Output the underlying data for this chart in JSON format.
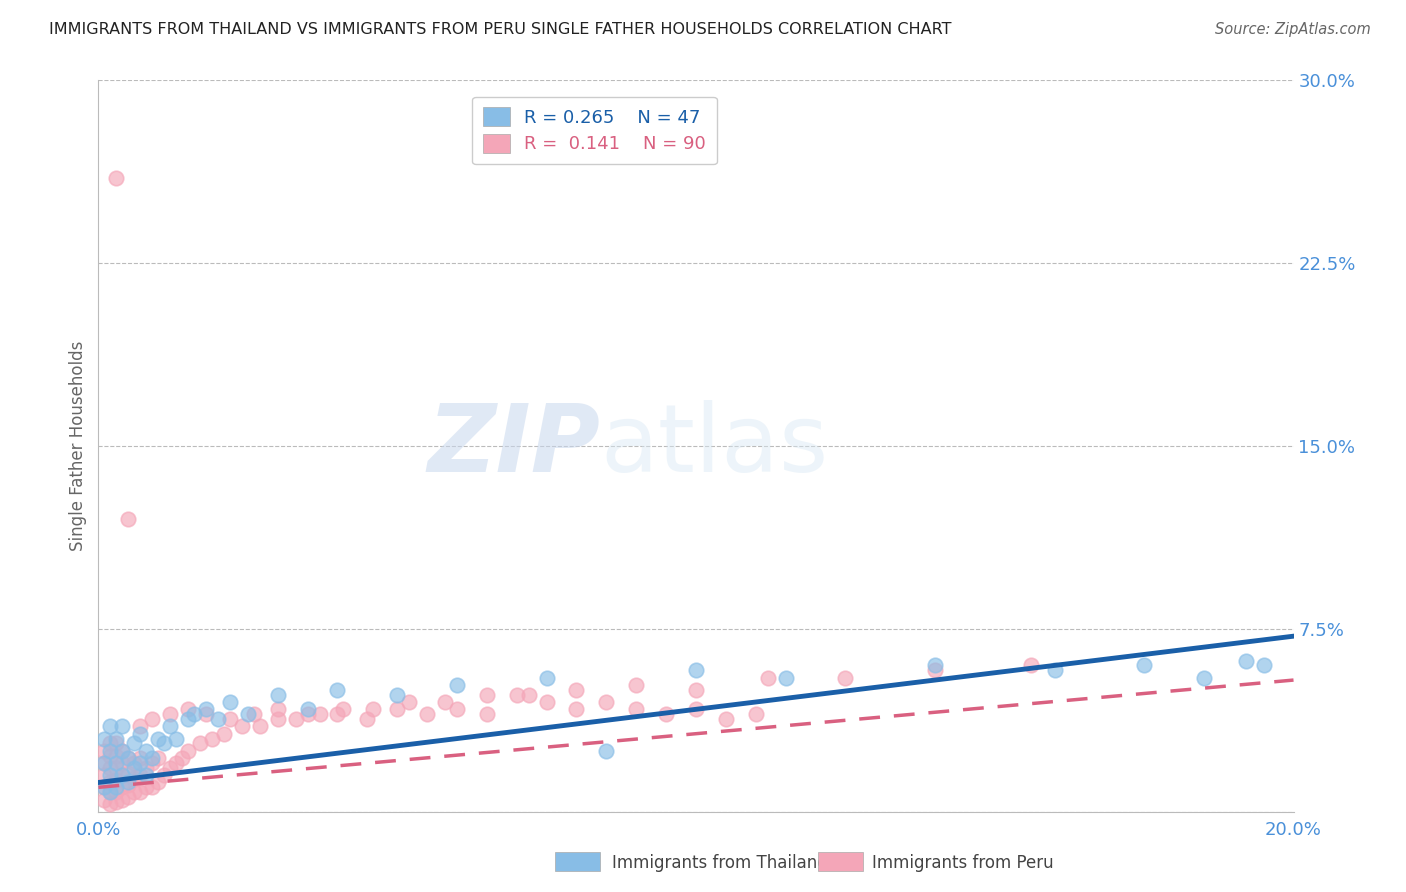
{
  "title": "IMMIGRANTS FROM THAILAND VS IMMIGRANTS FROM PERU SINGLE FATHER HOUSEHOLDS CORRELATION CHART",
  "source": "Source: ZipAtlas.com",
  "ylabel": "Single Father Households",
  "xlim": [
    0.0,
    0.2
  ],
  "ylim": [
    0.0,
    0.3
  ],
  "xtick_labels": [
    "0.0%",
    "20.0%"
  ],
  "ytick_labels": [
    "",
    "7.5%",
    "15.0%",
    "22.5%",
    "30.0%"
  ],
  "yticks": [
    0.0,
    0.075,
    0.15,
    0.225,
    0.3
  ],
  "thailand_color": "#88bde6",
  "peru_color": "#f4a6b8",
  "thailand_line_color": "#1a5fa8",
  "peru_line_color": "#d96080",
  "legend_r_thailand": "0.265",
  "legend_n_thailand": "47",
  "legend_r_peru": "0.141",
  "legend_n_peru": "90",
  "watermark_zip": "ZIP",
  "watermark_atlas": "atlas",
  "background_color": "#ffffff",
  "grid_color": "#bbbbbb",
  "title_color": "#222222",
  "axis_label_color": "#666666",
  "ytick_label_color": "#4a90d9",
  "xtick_label_color": "#4a90d9",
  "thailand_slope": 0.3,
  "thailand_intercept": 0.012,
  "peru_slope": 0.22,
  "peru_intercept": 0.01,
  "thailand_points_x": [
    0.001,
    0.001,
    0.001,
    0.002,
    0.002,
    0.002,
    0.002,
    0.003,
    0.003,
    0.003,
    0.004,
    0.004,
    0.004,
    0.005,
    0.005,
    0.006,
    0.006,
    0.007,
    0.007,
    0.008,
    0.008,
    0.009,
    0.01,
    0.011,
    0.012,
    0.013,
    0.015,
    0.016,
    0.018,
    0.02,
    0.022,
    0.025,
    0.03,
    0.035,
    0.04,
    0.05,
    0.06,
    0.075,
    0.085,
    0.1,
    0.115,
    0.14,
    0.16,
    0.175,
    0.185,
    0.192,
    0.195
  ],
  "thailand_points_y": [
    0.01,
    0.02,
    0.03,
    0.008,
    0.015,
    0.025,
    0.035,
    0.01,
    0.02,
    0.03,
    0.015,
    0.025,
    0.035,
    0.012,
    0.022,
    0.018,
    0.028,
    0.02,
    0.032,
    0.015,
    0.025,
    0.022,
    0.03,
    0.028,
    0.035,
    0.03,
    0.038,
    0.04,
    0.042,
    0.038,
    0.045,
    0.04,
    0.048,
    0.042,
    0.05,
    0.048,
    0.052,
    0.055,
    0.025,
    0.058,
    0.055,
    0.06,
    0.058,
    0.06,
    0.055,
    0.062,
    0.06
  ],
  "peru_points_x": [
    0.001,
    0.001,
    0.001,
    0.001,
    0.001,
    0.002,
    0.002,
    0.002,
    0.002,
    0.002,
    0.002,
    0.003,
    0.003,
    0.003,
    0.003,
    0.003,
    0.003,
    0.004,
    0.004,
    0.004,
    0.004,
    0.004,
    0.005,
    0.005,
    0.005,
    0.005,
    0.006,
    0.006,
    0.006,
    0.007,
    0.007,
    0.007,
    0.008,
    0.008,
    0.009,
    0.009,
    0.01,
    0.01,
    0.011,
    0.012,
    0.013,
    0.014,
    0.015,
    0.017,
    0.019,
    0.021,
    0.024,
    0.027,
    0.03,
    0.033,
    0.037,
    0.041,
    0.046,
    0.052,
    0.058,
    0.065,
    0.072,
    0.08,
    0.09,
    0.1,
    0.112,
    0.125,
    0.14,
    0.156,
    0.003,
    0.005,
    0.007,
    0.009,
    0.012,
    0.015,
    0.018,
    0.022,
    0.026,
    0.03,
    0.035,
    0.04,
    0.045,
    0.05,
    0.055,
    0.06,
    0.065,
    0.07,
    0.075,
    0.08,
    0.085,
    0.09,
    0.095,
    0.1,
    0.105,
    0.11
  ],
  "peru_points_y": [
    0.005,
    0.01,
    0.015,
    0.02,
    0.025,
    0.003,
    0.008,
    0.012,
    0.018,
    0.023,
    0.028,
    0.004,
    0.008,
    0.013,
    0.018,
    0.023,
    0.028,
    0.005,
    0.01,
    0.015,
    0.02,
    0.025,
    0.006,
    0.011,
    0.016,
    0.022,
    0.008,
    0.014,
    0.02,
    0.008,
    0.015,
    0.022,
    0.01,
    0.018,
    0.01,
    0.02,
    0.012,
    0.022,
    0.015,
    0.018,
    0.02,
    0.022,
    0.025,
    0.028,
    0.03,
    0.032,
    0.035,
    0.035,
    0.038,
    0.038,
    0.04,
    0.042,
    0.042,
    0.045,
    0.045,
    0.048,
    0.048,
    0.05,
    0.052,
    0.05,
    0.055,
    0.055,
    0.058,
    0.06,
    0.26,
    0.12,
    0.035,
    0.038,
    0.04,
    0.042,
    0.04,
    0.038,
    0.04,
    0.042,
    0.04,
    0.04,
    0.038,
    0.042,
    0.04,
    0.042,
    0.04,
    0.048,
    0.045,
    0.042,
    0.045,
    0.042,
    0.04,
    0.042,
    0.038,
    0.04
  ]
}
